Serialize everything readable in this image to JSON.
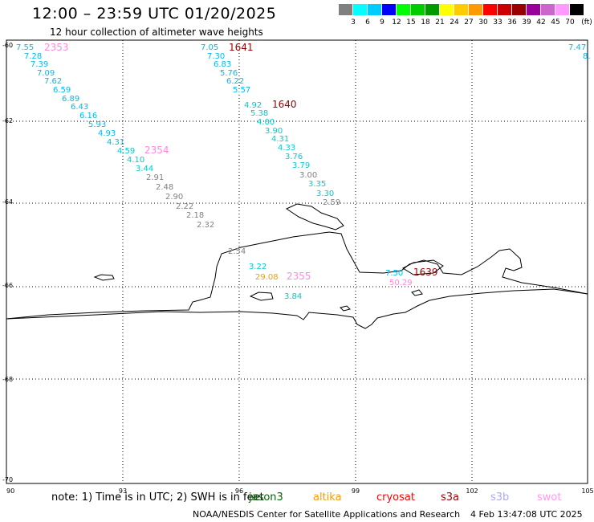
{
  "title": "12:00 – 23:59 UTC 01/20/2025",
  "subtitle": "12 hour collection of altimeter wave heights",
  "colorbar": {
    "unit": "(ft)",
    "swatches": [
      "#808080",
      "#00ffff",
      "#00ccff",
      "#0000ff",
      "#00ff00",
      "#00cc00",
      "#009900",
      "#ffff00",
      "#ffcc00",
      "#ff9900",
      "#ff0000",
      "#cc0000",
      "#990000",
      "#990099",
      "#cc66cc",
      "#ff99ff",
      "#000000"
    ],
    "labels": [
      "3",
      "6",
      "9",
      "12",
      "15",
      "18",
      "21",
      "24",
      "27",
      "30",
      "33",
      "36",
      "39",
      "42",
      "45",
      "70"
    ]
  },
  "axes": {
    "lat_labels": [
      "-60",
      "-62",
      "-64",
      "-66",
      "-68",
      "-70"
    ],
    "lon_labels": [
      "90",
      "93",
      "96",
      "99",
      "102",
      "105"
    ]
  },
  "tracks": [
    {
      "id": "2353",
      "label_color": "#ff88dd",
      "points": [
        {
          "v": "7.55",
          "c": "#00bbee"
        },
        {
          "v": "7.28",
          "c": "#00bbee"
        },
        {
          "v": "7.39",
          "c": "#00bbee"
        },
        {
          "v": "7.09",
          "c": "#00bbee"
        },
        {
          "v": "7.62",
          "c": "#00bbee"
        },
        {
          "v": "6.59",
          "c": "#00bbee"
        },
        {
          "v": "6.89",
          "c": "#00bbee"
        },
        {
          "v": "6.43",
          "c": "#00bbee"
        },
        {
          "v": "6.16",
          "c": "#00bbee"
        },
        {
          "v": "5.93",
          "c": "#00bbee"
        },
        {
          "v": "4.93",
          "c": "#00bbee"
        },
        {
          "v": "4.31",
          "c": "#00bbee"
        }
      ]
    },
    {
      "id": "2354",
      "label_color": "#ff88dd",
      "points": [
        {
          "v": "4.59",
          "c": "#00cccc"
        },
        {
          "v": "4.10",
          "c": "#00cccc"
        },
        {
          "v": "3.44",
          "c": "#00cccc"
        },
        {
          "v": "2.91",
          "c": "#808080"
        },
        {
          "v": "2.48",
          "c": "#808080"
        },
        {
          "v": "2.90",
          "c": "#808080"
        },
        {
          "v": "2.22",
          "c": "#808080"
        },
        {
          "v": "2.18",
          "c": "#808080"
        },
        {
          "v": "2.32",
          "c": "#808080"
        }
      ]
    },
    {
      "id": "1641",
      "label_color": "#990000",
      "points": [
        {
          "v": "7.05",
          "c": "#00bbee"
        },
        {
          "v": "7.30",
          "c": "#00bbee"
        },
        {
          "v": "6.83",
          "c": "#00bbee"
        },
        {
          "v": "5.76",
          "c": "#00bbee"
        },
        {
          "v": "6.22",
          "c": "#00bbee"
        },
        {
          "v": "5.57",
          "c": "#00bbee"
        }
      ]
    },
    {
      "id": "1640",
      "label_color": "#990000",
      "points": [
        {
          "v": "4.92",
          "c": "#00cccc"
        },
        {
          "v": "5.38",
          "c": "#00cccc"
        },
        {
          "v": "4.00",
          "c": "#00cccc"
        },
        {
          "v": "3.90",
          "c": "#00cccc"
        },
        {
          "v": "4.31",
          "c": "#00cccc"
        },
        {
          "v": "4.33",
          "c": "#00cccc"
        },
        {
          "v": "3.76",
          "c": "#00cccc"
        },
        {
          "v": "3.79",
          "c": "#00cccc"
        },
        {
          "v": "3.00",
          "c": "#808080"
        },
        {
          "v": "3.35",
          "c": "#00cccc"
        },
        {
          "v": "3.30",
          "c": "#00cccc"
        },
        {
          "v": "2.59",
          "c": "#808080"
        }
      ]
    },
    {
      "id": "2355",
      "label_color": "#ff88dd",
      "points": [
        {
          "v": "2.54",
          "c": "#808080"
        },
        {
          "v": "3.22",
          "c": "#00cccc"
        },
        {
          "v": "29.08",
          "c": "#ff9900"
        },
        {
          "v": "3.84",
          "c": "#00cccc"
        }
      ]
    },
    {
      "id": "1639",
      "label_color": "#990000",
      "points": [
        {
          "v": "7.50",
          "c": "#00bbee"
        },
        {
          "v": "50.29",
          "c": "#ff88dd"
        }
      ]
    }
  ],
  "edge_values": [
    {
      "v": "7.47",
      "c": "#00bbee"
    },
    {
      "v": "8.",
      "c": "#00bbee"
    }
  ],
  "footer": {
    "note": "note: 1) Time is in UTC; 2) SWH is in feet",
    "missions": [
      {
        "name": "jason3",
        "color": "#006600"
      },
      {
        "name": "altika",
        "color": "#ff9900"
      },
      {
        "name": "cryosat",
        "color": "#ff0000"
      },
      {
        "name": "s3a",
        "color": "#990000"
      },
      {
        "name": "s3b",
        "color": "#aaaaee"
      },
      {
        "name": "swot",
        "color": "#ff99ee"
      }
    ],
    "credit": "NOAA/NESDIS Center for Satellite Applications and Research",
    "timestamp": "4 Feb 13:47:08 UTC 2025"
  }
}
